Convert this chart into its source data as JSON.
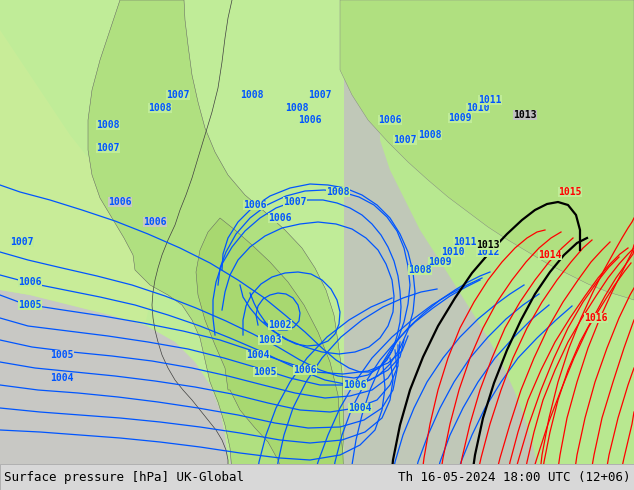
{
  "title_left": "Surface pressure [hPa] UK-Global",
  "title_right": "Th 16-05-2024 18:00 UTC (12+06)",
  "blue_color": "#0055ff",
  "red_color": "#ff0000",
  "black_color": "#000000",
  "land_green_light": "#c8f0a0",
  "land_green_dark": "#90d060",
  "sea_gray": "#c8c8c8",
  "sea_gray2": "#b8b8b8",
  "bottom_bar": "#d8d8d8",
  "isobar_lw": 0.9,
  "label_fs": 7,
  "title_fs": 9
}
